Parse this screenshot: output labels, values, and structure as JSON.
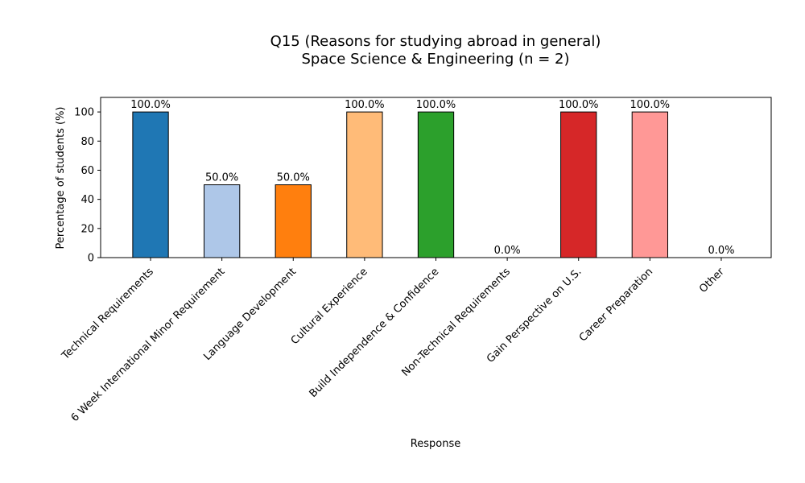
{
  "chart_data": {
    "type": "bar",
    "title_line1": "Q15 (Reasons for studying abroad in general)",
    "title_line2": "Space Science & Engineering (n = 2)",
    "xlabel": "Response",
    "ylabel": "Percentage of students (%)",
    "ylim": [
      0,
      110
    ],
    "yticks": [
      "0",
      "20",
      "40",
      "60",
      "80",
      "100"
    ],
    "grid": false,
    "legend": "none",
    "categories": [
      "Technical Requirements",
      "6 Week International Minor Requirement",
      "Language Development",
      "Cultural Experience",
      "Build Independence & Confidence",
      "Non-Technical Requirements",
      "Gain Perspective on U.S.",
      "Career Preparation",
      "Other"
    ],
    "values": [
      100,
      50,
      50,
      100,
      100,
      0,
      100,
      100,
      0
    ],
    "value_labels": [
      "100.0%",
      "50.0%",
      "50.0%",
      "100.0%",
      "100.0%",
      "0.0%",
      "100.0%",
      "100.0%",
      "0.0%"
    ],
    "colors": [
      "#1f77b4",
      "#aec7e8",
      "#ff7f0e",
      "#ffbb78",
      "#2ca02c",
      "#98df8a",
      "#d62728",
      "#ff9896",
      "#9467bd"
    ]
  }
}
